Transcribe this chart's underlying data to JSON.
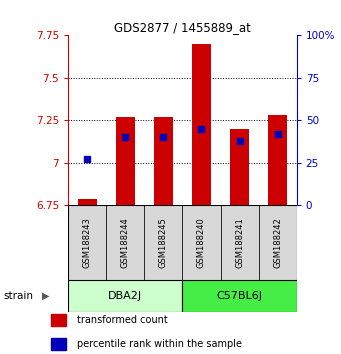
{
  "title": "GDS2877 / 1455889_at",
  "samples": [
    "GSM188243",
    "GSM188244",
    "GSM188245",
    "GSM188240",
    "GSM188241",
    "GSM188242"
  ],
  "group_colors_light": [
    "#ccffcc",
    "#ccffcc",
    "#ccffcc",
    "#44ee44",
    "#44ee44",
    "#44ee44"
  ],
  "bar_bottom": 6.75,
  "transformed_counts": [
    6.79,
    7.27,
    7.27,
    7.7,
    7.2,
    7.28
  ],
  "percentile_ranks": [
    27,
    40,
    40,
    45,
    38,
    42
  ],
  "ylim_left": [
    6.75,
    7.75
  ],
  "ylim_right": [
    0,
    100
  ],
  "yticks_left": [
    6.75,
    7.0,
    7.25,
    7.5,
    7.75
  ],
  "yticks_right": [
    0,
    25,
    50,
    75,
    100
  ],
  "ytick_labels_left": [
    "6.75",
    "7",
    "7.25",
    "7.5",
    "7.75"
  ],
  "ytick_labels_right": [
    "0",
    "25",
    "50",
    "75",
    "100%"
  ],
  "left_tick_color": "#cc0000",
  "right_tick_color": "#0000cc",
  "bar_color": "#cc0000",
  "percentile_color": "#0000bb",
  "bar_width": 0.5,
  "background_color": "#ffffff",
  "legend_red_label": "transformed count",
  "legend_blue_label": "percentile rank within the sample",
  "group_info": [
    {
      "label": "DBA2J",
      "start": 0,
      "end": 2,
      "color": "#ccffcc"
    },
    {
      "label": "C57BL6J",
      "start": 3,
      "end": 5,
      "color": "#44ee44"
    }
  ]
}
